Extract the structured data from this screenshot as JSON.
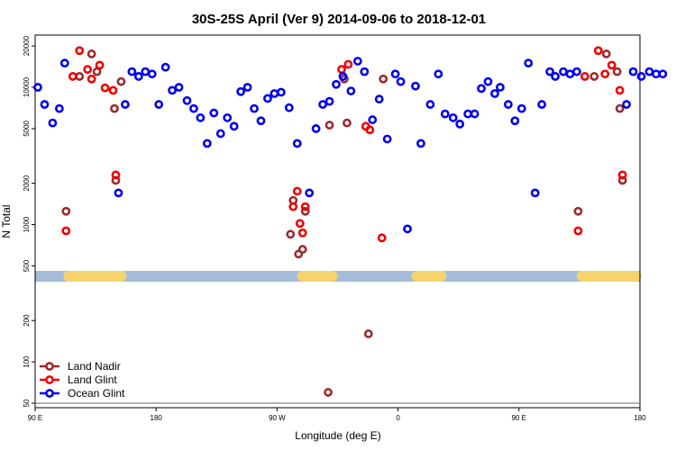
{
  "chart_data": {
    "type": "scatter",
    "title": "30S-25S April (Ver 9)   2014-09-06 to 2018-12-01",
    "xlabel": "Longitude (deg E)",
    "ylabel": "N Total",
    "x_ticks": [
      {
        "value": 90,
        "label": "90 E"
      },
      {
        "value": 180,
        "label": "180"
      },
      {
        "value": 270,
        "label": "90 W"
      },
      {
        "value": 360,
        "label": "0"
      },
      {
        "value": 450,
        "label": "90 E"
      },
      {
        "value": 540,
        "label": "180"
      }
    ],
    "y_ticks": [
      50,
      100,
      200,
      500,
      1000,
      2000,
      5000,
      10000,
      20000
    ],
    "xlim": [
      90,
      540
    ],
    "ylim": [
      50,
      24000
    ],
    "y_scale": "log",
    "legend_position": "bottom-left",
    "band": {
      "y": 420,
      "color": "#a5bcd8",
      "land_color": "#f6d36d",
      "land_segments": [
        [
          115,
          154
        ],
        [
          289,
          311
        ],
        [
          374,
          392
        ],
        [
          497,
          537
        ]
      ]
    },
    "series": [
      {
        "name": "Land Nadir",
        "color": "#9b2c2c",
        "x": [
          113,
          123,
          132,
          136,
          149,
          150,
          154,
          280,
          282,
          286,
          289,
          291,
          308,
          309,
          320,
          322,
          338,
          349,
          494,
          506,
          515,
          523,
          525,
          527
        ],
        "y": [
          1250,
          12000,
          17500,
          13000,
          7000,
          2100,
          11000,
          850,
          1500,
          610,
          660,
          1250,
          60,
          5300,
          11500,
          5500,
          160,
          11500,
          1250,
          12000,
          17500,
          13000,
          7000,
          2100
        ]
      },
      {
        "name": "Land Glint",
        "color": "#f00000",
        "x": [
          113,
          118,
          123,
          129,
          132,
          138,
          142,
          148,
          150,
          282,
          285,
          287,
          289,
          291,
          318,
          323,
          336,
          339,
          348,
          494,
          499,
          509,
          514,
          519,
          525,
          527
        ],
        "y": [
          900,
          12000,
          18500,
          13500,
          11500,
          14500,
          9900,
          9500,
          2300,
          1350,
          1750,
          1020,
          870,
          1350,
          13500,
          14700,
          5200,
          4900,
          800,
          900,
          12000,
          18500,
          12500,
          14500,
          9500,
          2300
        ]
      },
      {
        "name": "Ocean Glint",
        "color": "#0000f0",
        "x": [
          92,
          97,
          103,
          108,
          112,
          152,
          157,
          162,
          167,
          172,
          177,
          182,
          187,
          192,
          197,
          203,
          208,
          213,
          218,
          223,
          228,
          233,
          238,
          243,
          248,
          253,
          258,
          263,
          268,
          273,
          279,
          285,
          294,
          299,
          304,
          309,
          314,
          319,
          325,
          330,
          335,
          341,
          346,
          352,
          358,
          362,
          367,
          373,
          377,
          384,
          390,
          395,
          401,
          406,
          412,
          417,
          422,
          427,
          432,
          436,
          442,
          447,
          452,
          457,
          462,
          467,
          473,
          477,
          483,
          488,
          493,
          530,
          535,
          541,
          547,
          552,
          557
        ],
        "y": [
          10000,
          7500,
          5500,
          7000,
          15000,
          1700,
          7500,
          13000,
          12000,
          13000,
          12500,
          7500,
          14000,
          9500,
          10000,
          8000,
          7000,
          6000,
          3900,
          6500,
          4600,
          6000,
          5200,
          9300,
          10000,
          7000,
          5700,
          8300,
          9000,
          9200,
          7100,
          3900,
          1700,
          5000,
          7500,
          7900,
          10500,
          12000,
          9400,
          15500,
          13000,
          5800,
          8200,
          4200,
          12500,
          11000,
          930,
          10200,
          3900,
          7500,
          12500,
          6400,
          6000,
          5400,
          6400,
          6400,
          9800,
          11000,
          9000,
          10000,
          7500,
          5700,
          7000,
          15000,
          1700,
          7500,
          13000,
          12000,
          13000,
          12500,
          13000,
          7500,
          13000,
          12000,
          13000,
          12500,
          12500
        ]
      }
    ]
  }
}
